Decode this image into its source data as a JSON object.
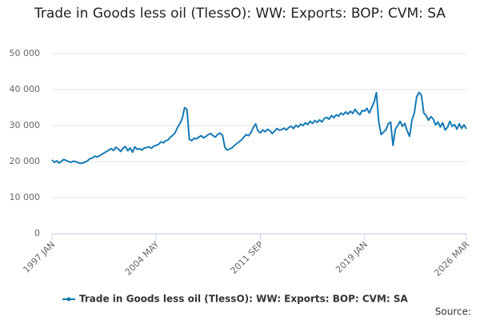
{
  "chart_data": {
    "type": "line",
    "title": "Trade in Goods less oil (TlessO): WW: Exports: BOP: CVM: SA",
    "source": "Source:",
    "categories": [
      "1997 JAN",
      null,
      null,
      null,
      null,
      null,
      null,
      null,
      null,
      null,
      null,
      null,
      null,
      null,
      null,
      null,
      null,
      null,
      null,
      null,
      null,
      null,
      null,
      null,
      null,
      null,
      null,
      null,
      null,
      null,
      null,
      null,
      null,
      null,
      null,
      null,
      null,
      null,
      null,
      null,
      null,
      null,
      null,
      null,
      "2004 MAY",
      null,
      null,
      null,
      null,
      null,
      null,
      null,
      null,
      null,
      null,
      null,
      null,
      null,
      null,
      null,
      null,
      null,
      null,
      null,
      null,
      null,
      null,
      null,
      null,
      null,
      null,
      null,
      null,
      null,
      null,
      null,
      null,
      null,
      null,
      null,
      null,
      null,
      null,
      null,
      null,
      null,
      null,
      null,
      "2011 SEP",
      null,
      null,
      null,
      null,
      null,
      null,
      null,
      null,
      null,
      null,
      null,
      null,
      null,
      null,
      null,
      null,
      null,
      null,
      null,
      null,
      null,
      null,
      null,
      null,
      null,
      null,
      null,
      null,
      null,
      null,
      null,
      null,
      null,
      null,
      null,
      null,
      null,
      null,
      null,
      null,
      null,
      null,
      null,
      "2019 JAN",
      null,
      null,
      null,
      null,
      null,
      null,
      null,
      null,
      null,
      null,
      null,
      null,
      null,
      null,
      null,
      null,
      null,
      null,
      null,
      null,
      null,
      null,
      null,
      null,
      null,
      null,
      null,
      null,
      null,
      null,
      null,
      null,
      null,
      null,
      null,
      null,
      null,
      null,
      null,
      null,
      null,
      null,
      "2026 MAR"
    ],
    "series": [
      {
        "name": "Trade in Goods less oil (TlessO): WW: Exports: BOP: CVM: SA",
        "color": "#157ab5",
        "values": [
          20500,
          19800,
          20200,
          19600,
          20100,
          20600,
          20300,
          20000,
          19800,
          20100,
          20000,
          19700,
          19500,
          19600,
          19900,
          20200,
          20800,
          21000,
          21500,
          21300,
          21600,
          22000,
          22400,
          22800,
          23200,
          23600,
          23100,
          24000,
          23500,
          22800,
          23700,
          24200,
          23000,
          23800,
          22600,
          24100,
          23400,
          23600,
          23200,
          23800,
          23900,
          24100,
          23700,
          24300,
          24500,
          24800,
          25500,
          25200,
          25800,
          26000,
          26800,
          27300,
          28000,
          29500,
          30500,
          32000,
          35000,
          34500,
          26200,
          25800,
          26500,
          26300,
          26800,
          27200,
          26600,
          27000,
          27500,
          27800,
          27200,
          26800,
          27600,
          27900,
          27300,
          24000,
          23200,
          23500,
          23800,
          24500,
          25000,
          25500,
          26000,
          26800,
          27500,
          27200,
          28000,
          29500,
          30500,
          28500,
          28000,
          28800,
          28300,
          29000,
          28600,
          27800,
          28500,
          29200,
          28700,
          28900,
          29300,
          28800,
          29500,
          29800,
          29200,
          30100,
          29600,
          30400,
          30000,
          30800,
          30300,
          31200,
          30600,
          31400,
          30900,
          31600,
          31000,
          32000,
          32300,
          31800,
          32800,
          32200,
          33000,
          32600,
          33500,
          33000,
          33800,
          33200,
          34000,
          33400,
          34500,
          33600,
          33000,
          34200,
          34000,
          34800,
          33500,
          35000,
          36500,
          39200,
          31000,
          27500,
          28200,
          28800,
          30500,
          31000,
          24500,
          29000,
          30000,
          31200,
          29800,
          30600,
          28500,
          27000,
          31500,
          33500,
          38000,
          39200,
          38500,
          33500,
          32800,
          31500,
          32500,
          31800,
          30200,
          31000,
          29600,
          30800,
          28800,
          29500,
          31200,
          29800,
          30300,
          29000,
          30500,
          29200,
          30200,
          29100
        ]
      }
    ],
    "ylim": [
      0,
      50000
    ],
    "yticks": [
      0,
      {
        "value": 10000,
        "label": "10 000"
      },
      {
        "value": 20000,
        "label": "20 000"
      },
      {
        "value": 30000,
        "label": "30 000"
      },
      {
        "value": 40000,
        "label": "40 000"
      },
      {
        "value": 50000,
        "label": "50 000"
      }
    ],
    "grid": true
  }
}
